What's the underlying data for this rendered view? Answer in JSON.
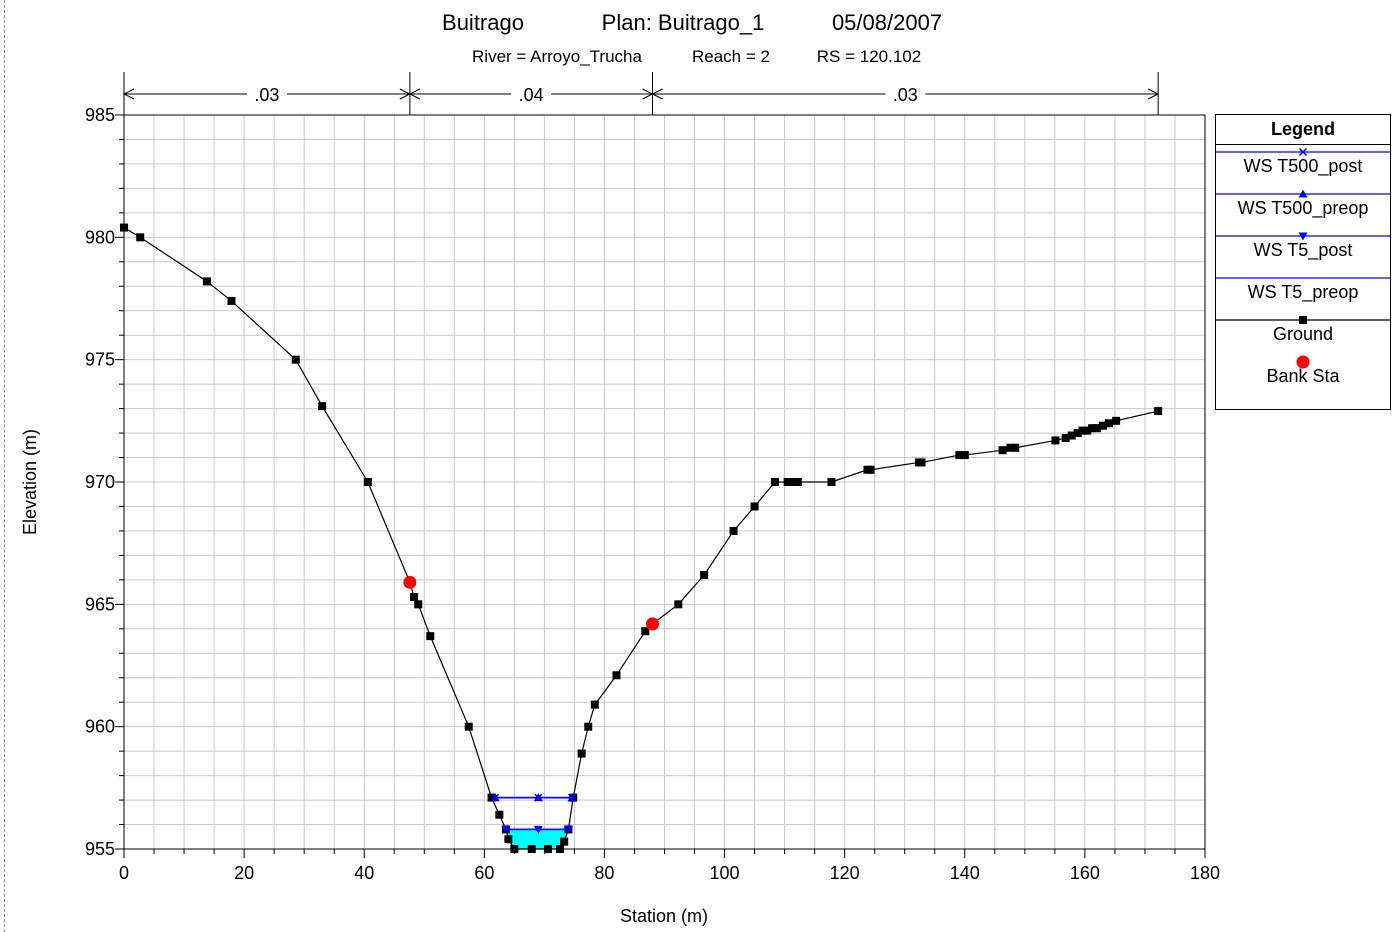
{
  "header": {
    "line1": [
      "Buitrago",
      "Plan: Buitrago_1",
      "05/08/2007"
    ],
    "line2": [
      "River = Arroyo_Trucha",
      "Reach = 2",
      "RS = 120.102"
    ]
  },
  "legend": {
    "title": "Legend",
    "entries": [
      {
        "label": "WS T500_post",
        "color": "#0000ff",
        "marker": "x"
      },
      {
        "label": "WS T500_preop",
        "color": "#0000ff",
        "marker": "triangle-up"
      },
      {
        "label": "WS T5_post",
        "color": "#0000ff",
        "marker": "triangle-down"
      },
      {
        "label": "WS T5_preop",
        "color": "#0000ff",
        "marker": "none"
      },
      {
        "label": "Ground",
        "color": "#000000",
        "marker": "square"
      },
      {
        "label": "Bank Sta",
        "color": "#ff0000",
        "marker": "circle"
      }
    ]
  },
  "chart_data": {
    "type": "line",
    "xlabel": "Station (m)",
    "ylabel": "Elevation (m)",
    "xlim": [
      0,
      180
    ],
    "ylim": [
      955,
      985
    ],
    "x_ticks": [
      0,
      20,
      40,
      60,
      80,
      100,
      120,
      140,
      160,
      180
    ],
    "y_ticks": [
      955,
      960,
      965,
      970,
      975,
      980,
      985
    ],
    "grid": true,
    "manning_n": [
      {
        "label": ".03",
        "from": 0,
        "to": 47.6
      },
      {
        "label": ".04",
        "from": 47.6,
        "to": 88
      },
      {
        "label": ".03",
        "from": 88,
        "to": 172.2
      }
    ],
    "series": [
      {
        "name": "Ground",
        "color": "#000000",
        "points": [
          [
            0,
            980.4
          ],
          [
            2.7,
            980.0
          ],
          [
            13.8,
            978.2
          ],
          [
            17.9,
            977.4
          ],
          [
            28.6,
            975.0
          ],
          [
            33.0,
            973.1
          ],
          [
            40.6,
            970.0
          ],
          [
            47.6,
            965.9
          ],
          [
            48.3,
            965.3
          ],
          [
            49.0,
            965.0
          ],
          [
            51.0,
            963.7
          ],
          [
            57.4,
            960.0
          ],
          [
            61.2,
            957.1
          ],
          [
            62.5,
            956.4
          ],
          [
            63.6,
            955.8
          ],
          [
            64.0,
            955.4
          ],
          [
            65.0,
            955.0
          ],
          [
            67.9,
            955.0
          ],
          [
            70.6,
            955.0
          ],
          [
            72.6,
            955.0
          ],
          [
            73.3,
            955.3
          ],
          [
            74.0,
            955.8
          ],
          [
            74.8,
            957.1
          ],
          [
            76.2,
            958.9
          ],
          [
            77.3,
            960.0
          ],
          [
            78.4,
            960.9
          ],
          [
            82.0,
            962.1
          ],
          [
            86.8,
            963.9
          ],
          [
            88.0,
            964.2
          ],
          [
            92.3,
            965.0
          ],
          [
            96.6,
            966.2
          ],
          [
            101.5,
            968.0
          ],
          [
            105.0,
            969.0
          ],
          [
            108.4,
            970.0
          ],
          [
            110.5,
            970.0
          ],
          [
            111.4,
            970.0
          ],
          [
            112.2,
            970.0
          ],
          [
            117.8,
            970.0
          ],
          [
            123.8,
            970.5
          ],
          [
            124.3,
            970.5
          ],
          [
            132.4,
            970.8
          ],
          [
            132.8,
            970.8
          ],
          [
            139.1,
            971.1
          ],
          [
            140.0,
            971.1
          ],
          [
            146.3,
            971.3
          ],
          [
            147.6,
            971.4
          ],
          [
            148.4,
            971.4
          ],
          [
            155.1,
            971.7
          ],
          [
            156.8,
            971.8
          ],
          [
            157.8,
            971.9
          ],
          [
            158.8,
            972.0
          ],
          [
            159.6,
            972.1
          ],
          [
            160.4,
            972.1
          ],
          [
            161.2,
            972.2
          ],
          [
            162.0,
            972.2
          ],
          [
            163.0,
            972.3
          ],
          [
            164.0,
            972.4
          ],
          [
            165.2,
            972.5
          ],
          [
            172.2,
            972.9
          ]
        ]
      },
      {
        "name": "Bank Sta",
        "color": "#ff0000",
        "points": [
          [
            47.6,
            965.9
          ],
          [
            88.0,
            964.2
          ]
        ]
      },
      {
        "name": "WS T500_post",
        "color": "#0000ff",
        "elevation": 957.1,
        "points": [
          [
            61.8,
            957.1
          ],
          [
            69.0,
            957.1
          ],
          [
            74.6,
            957.1
          ]
        ]
      },
      {
        "name": "WS T500_preop",
        "color": "#0000ff",
        "elevation": 957.1,
        "points": [
          [
            61.8,
            957.1
          ],
          [
            69.0,
            957.1
          ],
          [
            74.6,
            957.1
          ]
        ]
      },
      {
        "name": "WS T5_post",
        "color": "#0000ff",
        "elevation": 955.8,
        "points": [
          [
            63.6,
            955.8
          ],
          [
            69.0,
            955.8
          ],
          [
            74.0,
            955.8
          ]
        ]
      },
      {
        "name": "WS T5_preop",
        "color": "#0000ff",
        "elevation": 955.8,
        "points": [
          [
            63.6,
            955.8
          ],
          [
            69.0,
            955.8
          ],
          [
            74.0,
            955.8
          ]
        ]
      }
    ],
    "water_fill_color": "#00ffff"
  }
}
